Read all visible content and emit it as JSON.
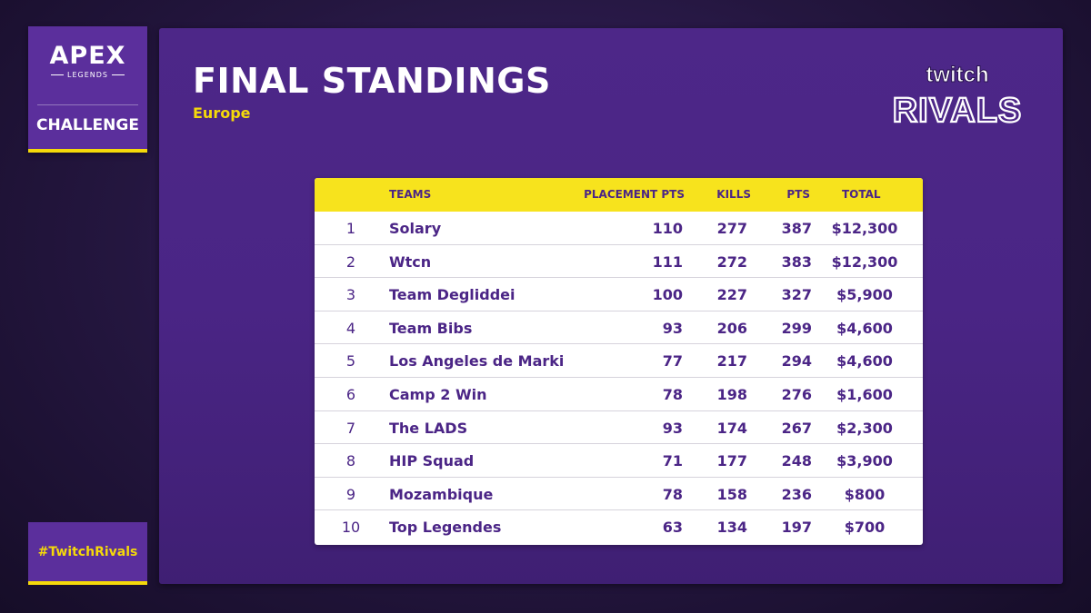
{
  "apex_badge": {
    "logo_text": "APEX",
    "logo_sub": "LEGENDS",
    "label": "CHALLENGE"
  },
  "hashtag": "#TwitchRivals",
  "title": "FINAL STANDINGS",
  "region": "Europe",
  "brand_logo": {
    "line1": "twitch",
    "line2": "RIVALS"
  },
  "colors": {
    "accent_yellow": "#f5d90a",
    "panel_purple": "#4d2788",
    "text_purple": "#4b2586"
  },
  "table": {
    "headers": {
      "rank": "",
      "teams": "TEAMS",
      "placement": "PLACEMENT PTS",
      "kills": "KILLS",
      "pts": "PTS",
      "total": "TOTAL"
    },
    "rows": [
      {
        "rank": "1",
        "team": "Solary",
        "placement": "110",
        "kills": "277",
        "pts": "387",
        "total": "$12,300"
      },
      {
        "rank": "2",
        "team": "Wtcn",
        "placement": "111",
        "kills": "272",
        "pts": "383",
        "total": "$12,300"
      },
      {
        "rank": "3",
        "team": "Team Degliddei",
        "placement": "100",
        "kills": "227",
        "pts": "327",
        "total": "$5,900"
      },
      {
        "rank": "4",
        "team": "Team Bibs",
        "placement": "93",
        "kills": "206",
        "pts": "299",
        "total": "$4,600"
      },
      {
        "rank": "5",
        "team": "Los Angeles de Marki",
        "placement": "77",
        "kills": "217",
        "pts": "294",
        "total": "$4,600"
      },
      {
        "rank": "6",
        "team": "Camp 2 Win",
        "placement": "78",
        "kills": "198",
        "pts": "276",
        "total": "$1,600"
      },
      {
        "rank": "7",
        "team": "The LADS",
        "placement": "93",
        "kills": "174",
        "pts": "267",
        "total": "$2,300"
      },
      {
        "rank": "8",
        "team": "HIP Squad",
        "placement": "71",
        "kills": "177",
        "pts": "248",
        "total": "$3,900"
      },
      {
        "rank": "9",
        "team": "Mozambique",
        "placement": "78",
        "kills": "158",
        "pts": "236",
        "total": "$800"
      },
      {
        "rank": "10",
        "team": "Top Legendes",
        "placement": "63",
        "kills": "134",
        "pts": "197",
        "total": "$700"
      }
    ]
  }
}
